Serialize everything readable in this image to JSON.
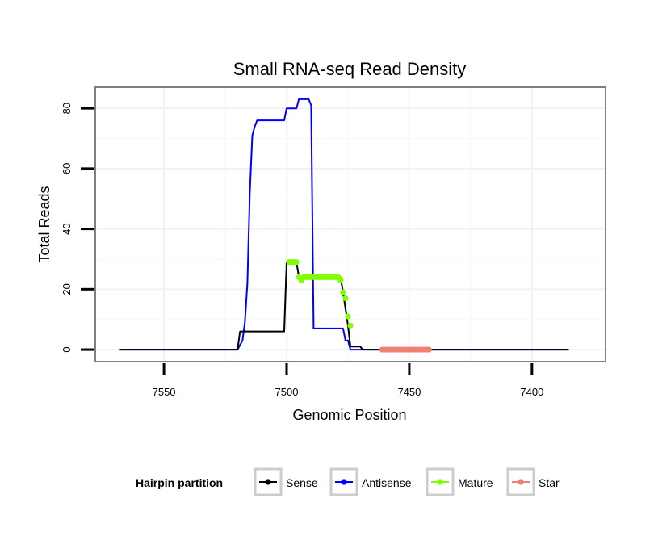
{
  "chart_data": {
    "type": "line",
    "title": "Small RNA-seq Read Density",
    "xlabel": "Genomic Position",
    "ylabel": "Total Reads",
    "xlim": [
      7578,
      7370
    ],
    "x_reversed": true,
    "ylim": [
      -4,
      87
    ],
    "x_ticks": [
      7550,
      7500,
      7450,
      7400
    ],
    "x_tick_labels": [
      "7550",
      "7500",
      "7450",
      "7400"
    ],
    "y_ticks": [
      0,
      20,
      40,
      60,
      80
    ],
    "y_tick_labels": [
      "0",
      "20",
      "40",
      "60",
      "80"
    ],
    "grid": true,
    "legend": {
      "title": "Hairpin partition",
      "position": "bottom",
      "entries": [
        {
          "name": "Sense",
          "color": "#000000"
        },
        {
          "name": "Antisense",
          "color": "#0000ff"
        },
        {
          "name": "Mature",
          "color": "#7fff00"
        },
        {
          "name": "Star",
          "color": "#f08070"
        }
      ]
    },
    "series": [
      {
        "name": "Sense",
        "color": "#000000",
        "style": "line",
        "x": [
          7568,
          7520,
          7519,
          7501,
          7500,
          7496,
          7495,
          7478,
          7477,
          7475,
          7474,
          7470,
          7469,
          7385
        ],
        "y": [
          0,
          0,
          6,
          6,
          29,
          29,
          24,
          24,
          19,
          8,
          1,
          1,
          0,
          0
        ]
      },
      {
        "name": "Antisense",
        "color": "#0000ff",
        "style": "line",
        "x": [
          7568,
          7520,
          7518,
          7517,
          7516,
          7515,
          7514,
          7513,
          7512,
          7511,
          7510,
          7509,
          7501,
          7500,
          7496,
          7495,
          7491,
          7490,
          7489,
          7480,
          7479,
          7477,
          7476,
          7475,
          7474,
          7385
        ],
        "y": [
          0,
          0,
          3,
          9,
          22,
          52,
          71,
          74,
          76,
          76,
          76,
          76,
          76,
          80,
          80,
          83,
          83,
          81,
          7,
          7,
          7,
          7,
          3,
          3,
          0,
          0
        ]
      },
      {
        "name": "Mature",
        "color": "#7fff00",
        "style": "points",
        "x": [
          7499,
          7498,
          7497,
          7496,
          7495,
          7494,
          7493,
          7492,
          7491,
          7490,
          7489,
          7488,
          7487,
          7486,
          7485,
          7484,
          7483,
          7482,
          7481,
          7480,
          7479,
          7478,
          7477,
          7476,
          7475,
          7474
        ],
        "y": [
          29,
          29,
          29,
          29,
          24,
          23,
          24,
          24,
          24,
          24,
          24,
          24,
          24,
          24,
          24,
          24,
          24,
          24,
          24,
          24,
          24,
          23,
          19,
          17,
          11,
          8
        ]
      },
      {
        "name": "Star",
        "color": "#f08070",
        "style": "points",
        "x": [
          7461,
          7460,
          7459,
          7458,
          7457,
          7456,
          7455,
          7454,
          7453,
          7452,
          7451,
          7450,
          7449,
          7448,
          7447,
          7446,
          7445,
          7444,
          7443,
          7442
        ],
        "y": [
          0,
          0,
          0,
          0,
          0,
          0,
          0,
          0,
          0,
          0,
          0,
          0,
          0,
          0,
          0,
          0,
          0,
          0,
          0,
          0
        ]
      }
    ]
  }
}
